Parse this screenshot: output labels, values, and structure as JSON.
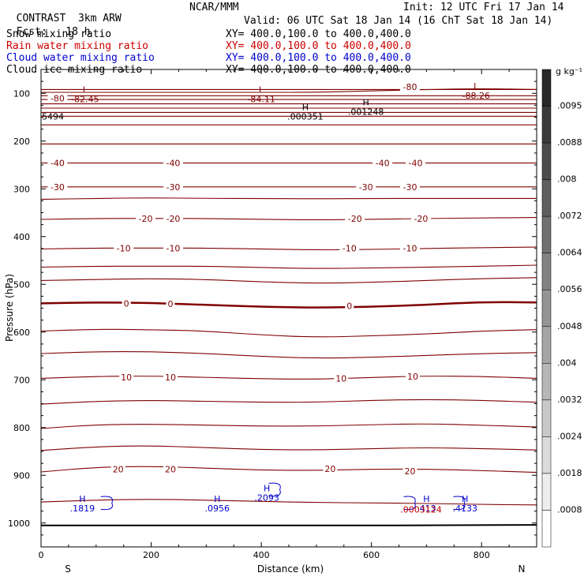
{
  "header": {
    "model": "CONTRAST",
    "resolution": "3km ARW",
    "center": "NCAR/MMM",
    "init": "Init: 12 UTC Fri 17 Jan 14",
    "fcst_label": "Fcst:",
    "fcst_value": "18 h",
    "valid": "Valid: 06 UTC Sat 18 Jan 14 (16 ChT Sat 18 Jan 14)"
  },
  "fields": [
    {
      "name": "Snow mixing ratio",
      "xy": "XY= 400.0,100.0 to 400.0,400.0",
      "color": "#000000"
    },
    {
      "name": "Rain water mixing ratio",
      "xy": "XY= 400.0,100.0 to 400.0,400.0",
      "color": "#cc0000"
    },
    {
      "name": "Cloud water mixing ratio",
      "xy": "XY= 400.0,100.0 to 400.0,400.0",
      "color": "#0000cc"
    },
    {
      "name": "Cloud ice mixing ratio",
      "xy": "XY= 400.0,100.0 to 400.0,400.0",
      "color": "#000000"
    }
  ],
  "colors": {
    "temperature": "#800000",
    "rain": "#cc0000",
    "cloud_water": "#0000cc",
    "ice": "#000000"
  },
  "chart_data": {
    "type": "cross-section contour",
    "xlabel": "Distance (km)",
    "ylabel": "Pressure (hPa)",
    "xlim": [
      0,
      900
    ],
    "ylim": [
      1050,
      50
    ],
    "x_ticks": [
      0,
      200,
      400,
      600,
      800
    ],
    "y_ticks": [
      100,
      200,
      300,
      400,
      500,
      600,
      700,
      800,
      900,
      1000
    ],
    "x_end_labels": {
      "left": "S",
      "right": "N"
    },
    "isotherms": [
      {
        "level": "-80",
        "labels": [
          {
            "x": 30,
            "p": 110
          },
          {
            "x": 670,
            "p": 86
          }
        ]
      },
      {
        "level": "-40",
        "labels": [
          {
            "x": 30,
            "p": 246
          },
          {
            "x": 240,
            "p": 246
          },
          {
            "x": 620,
            "p": 246
          },
          {
            "x": 680,
            "p": 246
          }
        ]
      },
      {
        "level": "-30",
        "labels": [
          {
            "x": 30,
            "p": 296
          },
          {
            "x": 240,
            "p": 296
          },
          {
            "x": 590,
            "p": 296
          },
          {
            "x": 670,
            "p": 296
          }
        ]
      },
      {
        "level": "-20",
        "labels": [
          {
            "x": 190,
            "p": 362
          },
          {
            "x": 240,
            "p": 362
          },
          {
            "x": 570,
            "p": 362
          },
          {
            "x": 690,
            "p": 362
          }
        ]
      },
      {
        "level": "-10",
        "labels": [
          {
            "x": 150,
            "p": 424
          },
          {
            "x": 240,
            "p": 424
          },
          {
            "x": 560,
            "p": 424
          },
          {
            "x": 670,
            "p": 424
          }
        ]
      },
      {
        "level": "0",
        "labels": [
          {
            "x": 155,
            "p": 540
          },
          {
            "x": 235,
            "p": 541
          },
          {
            "x": 560,
            "p": 545
          }
        ]
      },
      {
        "level": "10",
        "labels": [
          {
            "x": 155,
            "p": 695
          },
          {
            "x": 235,
            "p": 695
          },
          {
            "x": 545,
            "p": 697
          },
          {
            "x": 675,
            "p": 693
          }
        ]
      },
      {
        "level": "20",
        "labels": [
          {
            "x": 140,
            "p": 887
          },
          {
            "x": 235,
            "p": 887
          },
          {
            "x": 525,
            "p": 886
          },
          {
            "x": 670,
            "p": 891
          }
        ]
      }
    ],
    "extrema": [
      {
        "type": "L",
        "value": "-82.45",
        "x": 80,
        "p": 105,
        "field": "temperature"
      },
      {
        "type": "L",
        "value": "-84.11",
        "x": 400,
        "p": 105,
        "field": "temperature"
      },
      {
        "type": "L",
        "value": "-88.26",
        "x": 790,
        "p": 98,
        "field": "temperature"
      },
      {
        "type": "H",
        "value": ".000351",
        "x": 480,
        "p": 142,
        "field": "ice"
      },
      {
        "type": "H",
        "value": ".001248",
        "x": 590,
        "p": 132,
        "field": "ice"
      },
      {
        "type": "H",
        "value": ".1819",
        "x": 75,
        "p": 962,
        "field": "cloud_water"
      },
      {
        "type": "H",
        "value": ".0956",
        "x": 320,
        "p": 962,
        "field": "cloud_water"
      },
      {
        "type": "H",
        "value": ".2093",
        "x": 410,
        "p": 940,
        "field": "cloud_water"
      },
      {
        "type": "H",
        "value": ".413",
        "x": 700,
        "p": 962,
        "field": "cloud_water"
      },
      {
        "type": "H",
        "value": ".4133",
        "x": 770,
        "p": 962,
        "field": "cloud_water"
      }
    ],
    "rain_max_label": ".0003124",
    "left_edge_label": "5494",
    "colorbar": {
      "unit": "g kg⁻¹",
      "ticks": [
        ".0095",
        ".0088",
        ".008",
        ".0072",
        ".0064",
        ".0056",
        ".0048",
        ".004",
        ".0032",
        ".0024",
        ".0018",
        ".0008"
      ]
    }
  }
}
